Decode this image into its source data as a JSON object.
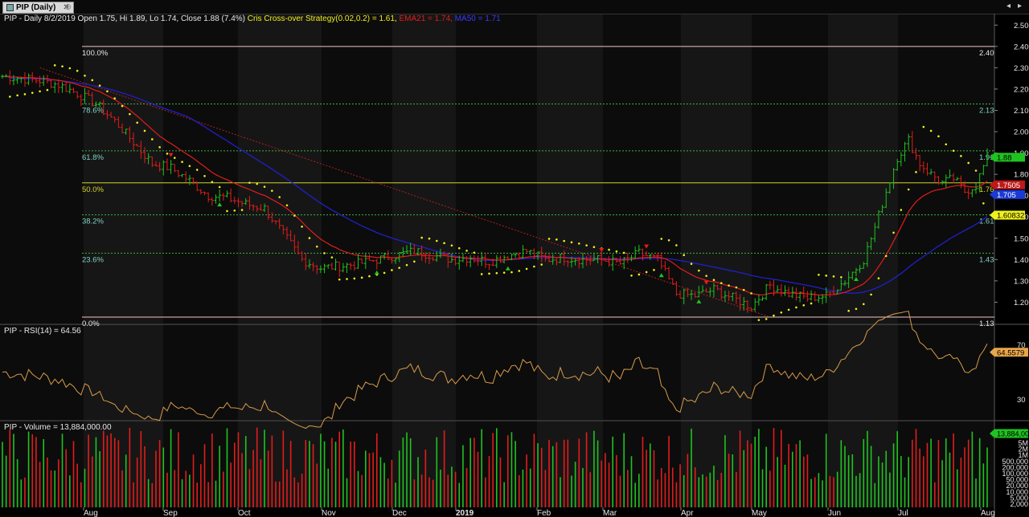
{
  "window": {
    "tab_title": "PIP (Daily)"
  },
  "legend": {
    "prefix": "PIP - Daily 8/2/2019 Open 1.75, Hi 1.89, Lo 1.74, Close 1.88 (7.4%)",
    "strategy": "Cris Cross-over Strategy(0.02,0.2) = 1.61,",
    "ema": "EMA21 = 1.74,",
    "ma": "MA50 = 1.71",
    "rsi": "PIP - RSI(14) = 64.56",
    "volume": "PIP - Volume = 13,884,000.00"
  },
  "colors": {
    "up": "#1fc31f",
    "down": "#e31c1c",
    "ema": "#e31c1c",
    "ma": "#2020c8",
    "sar": "#f0f01e",
    "fib": "#3cb43c",
    "fib_mid": "#d4d42a",
    "fib_edge": "#f2c6c6",
    "rsi": "#d89a4a",
    "grid": "#1b1b1b",
    "trend": "#b02020"
  },
  "chart_data": {
    "type": "candlestick",
    "symbol": "PIP",
    "period": "Daily",
    "months": [
      "Aug",
      "Sep",
      "Oct",
      "Nov",
      "Dec",
      "2019",
      "Feb",
      "Mar",
      "Apr",
      "May",
      "Jun",
      "Jul",
      "Aug"
    ],
    "price_axis_ticks": [
      "2.50",
      "2.40",
      "2.30",
      "2.20",
      "2.10",
      "2.00",
      "1.90",
      "1.80",
      "1.70",
      "1.60",
      "1.50",
      "1.40",
      "1.30",
      "1.20"
    ],
    "price_range": [
      1.1,
      2.55
    ],
    "fib_levels": [
      {
        "pct": "100.0%",
        "value": "2.40",
        "price": 2.4
      },
      {
        "pct": "78.6%",
        "value": "2.13",
        "price": 2.13
      },
      {
        "pct": "61.8%",
        "value": "1.91",
        "price": 1.91
      },
      {
        "pct": "50.0%",
        "value": "1.76",
        "price": 1.76
      },
      {
        "pct": "38.2%",
        "value": "1.61",
        "price": 1.61
      },
      {
        "pct": "23.6%",
        "value": "1.43",
        "price": 1.43
      },
      {
        "pct": "0.0%",
        "value": "1.13",
        "price": 1.13
      }
    ],
    "last_value_tags": {
      "close": "1.88",
      "ema": "1.7505",
      "ma": "1.705",
      "sar": "1.60832"
    },
    "price_path": [
      [
        0,
        2.26
      ],
      [
        5,
        2.25
      ],
      [
        10,
        2.24
      ],
      [
        15,
        2.22
      ],
      [
        20,
        2.18
      ],
      [
        25,
        2.13
      ],
      [
        30,
        2.05
      ],
      [
        35,
        1.95
      ],
      [
        40,
        1.85
      ],
      [
        45,
        1.83
      ],
      [
        50,
        1.77
      ],
      [
        55,
        1.7
      ],
      [
        60,
        1.69
      ],
      [
        65,
        1.66
      ],
      [
        70,
        1.64
      ],
      [
        75,
        1.52
      ],
      [
        80,
        1.4
      ],
      [
        85,
        1.36
      ],
      [
        90,
        1.37
      ],
      [
        95,
        1.38
      ],
      [
        100,
        1.4
      ],
      [
        105,
        1.42
      ],
      [
        110,
        1.44
      ],
      [
        115,
        1.42
      ],
      [
        120,
        1.4
      ],
      [
        125,
        1.41
      ],
      [
        130,
        1.39
      ],
      [
        135,
        1.42
      ],
      [
        140,
        1.44
      ],
      [
        145,
        1.4
      ],
      [
        150,
        1.41
      ],
      [
        155,
        1.4
      ],
      [
        160,
        1.4
      ],
      [
        165,
        1.38
      ],
      [
        170,
        1.43
      ],
      [
        175,
        1.4
      ],
      [
        180,
        1.24
      ],
      [
        185,
        1.23
      ],
      [
        190,
        1.26
      ],
      [
        195,
        1.22
      ],
      [
        200,
        1.18
      ],
      [
        205,
        1.28
      ],
      [
        210,
        1.24
      ],
      [
        215,
        1.22
      ],
      [
        220,
        1.23
      ],
      [
        225,
        1.3
      ],
      [
        230,
        1.4
      ],
      [
        233,
        1.55
      ],
      [
        236,
        1.72
      ],
      [
        239,
        1.88
      ],
      [
        242,
        1.96
      ],
      [
        245,
        1.85
      ],
      [
        248,
        1.8
      ],
      [
        251,
        1.76
      ],
      [
        254,
        1.78
      ],
      [
        257,
        1.72
      ],
      [
        260,
        1.75
      ],
      [
        263,
        1.88
      ]
    ],
    "rsi": {
      "label": "RSI(14)",
      "value": "64.5579",
      "levels": [
        "70",
        "30"
      ],
      "range": [
        15,
        85
      ]
    },
    "volume": {
      "value": "13,884,000.00",
      "tag": "13,884,000",
      "axis_ticks": [
        "5M",
        "2M",
        "1M",
        "500,000",
        "200,000",
        "100,000",
        "50,000",
        "20,000",
        "10,000",
        "5,000",
        "2,000"
      ]
    }
  }
}
